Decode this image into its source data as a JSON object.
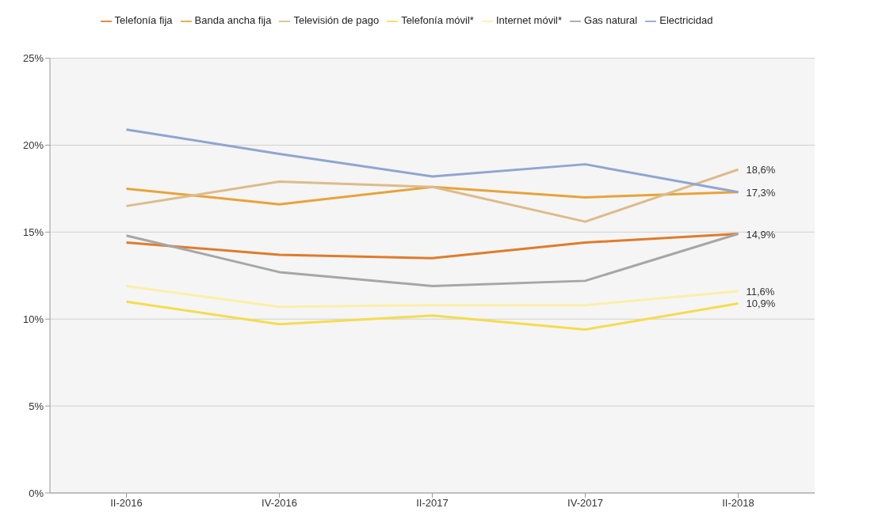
{
  "chart_data": {
    "type": "line",
    "categories": [
      "II-2016",
      "IV-2016",
      "II-2017",
      "IV-2017",
      "II-2018"
    ],
    "series": [
      {
        "name": "Telefonía fija",
        "color": "#e07b2a",
        "values": [
          14.4,
          13.7,
          13.5,
          14.4,
          14.9
        ],
        "value_labels": [
          null,
          null,
          null,
          null,
          "14,9%"
        ]
      },
      {
        "name": "Banda ancha fija",
        "color": "#e8a33a",
        "values": [
          17.5,
          16.6,
          17.6,
          17.0,
          17.3
        ],
        "value_labels": [
          null,
          null,
          null,
          null,
          "17,3%"
        ]
      },
      {
        "name": "Televisión de pago",
        "color": "#dcbc8a",
        "values": [
          16.5,
          17.9,
          17.6,
          15.6,
          18.6
        ],
        "value_labels": [
          null,
          null,
          null,
          null,
          "18,6%"
        ]
      },
      {
        "name": "Telefonía móvil*",
        "color": "#f5dc50",
        "values": [
          11.0,
          9.7,
          10.2,
          9.4,
          10.9
        ],
        "value_labels": [
          null,
          null,
          null,
          null,
          "10,9%"
        ]
      },
      {
        "name": "Internet móvil*",
        "color": "#fcefa8",
        "values": [
          11.9,
          10.7,
          10.8,
          10.8,
          11.6
        ],
        "value_labels": [
          null,
          null,
          null,
          null,
          "11,6%"
        ]
      },
      {
        "name": "Gas natural",
        "color": "#a6a6a6",
        "values": [
          14.8,
          12.7,
          11.9,
          12.2,
          14.9
        ]
      },
      {
        "name": "Electricidad",
        "color": "#8fa6cf",
        "values": [
          20.9,
          19.5,
          18.2,
          18.9,
          17.3
        ]
      }
    ],
    "ylim": [
      0,
      25
    ],
    "yticks": [
      {
        "value": 0,
        "label": "0%"
      },
      {
        "value": 5,
        "label": "5%"
      },
      {
        "value": 10,
        "label": "10%"
      },
      {
        "value": 15,
        "label": "15%"
      },
      {
        "value": 20,
        "label": "20%"
      },
      {
        "value": 25,
        "label": "25%"
      }
    ],
    "grid": "y",
    "legend": "top",
    "marker": "none",
    "line_style": "solid"
  }
}
